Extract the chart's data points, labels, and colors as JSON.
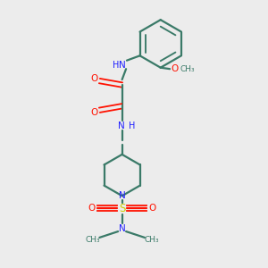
{
  "bg_color": "#ececec",
  "bond_color": "#3a7a68",
  "N_color": "#2020ff",
  "O_color": "#ff1100",
  "S_color": "#cccc00",
  "bond_lw": 1.6,
  "fig_bg": "#ececec",
  "xlim": [
    0,
    10
  ],
  "ylim": [
    0,
    10
  ]
}
